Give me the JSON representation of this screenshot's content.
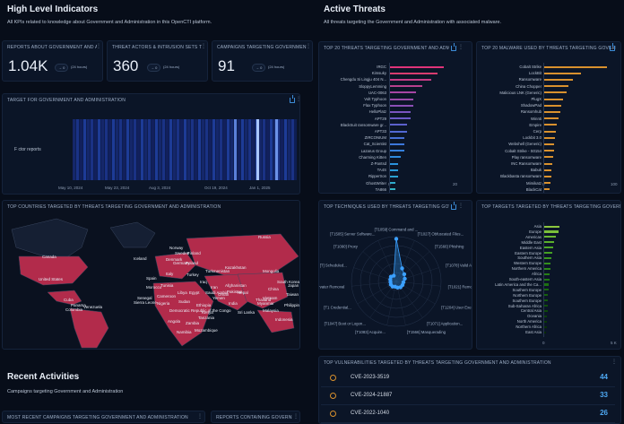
{
  "left_header": {
    "title": "High Level Indicators",
    "subtitle": "All KPIs related to knowledge about Government and Administration in this OpenCTI platform."
  },
  "right_header": {
    "title": "Active Threats",
    "subtitle": "All threats targeting the Government and Administration with associated malware."
  },
  "kpis": [
    {
      "title": "REPORTS ABOUT GOVERNMENT AND AD...",
      "value": "1.04K",
      "delta": "0",
      "period": "(24 hours)"
    },
    {
      "title": "THREAT ACTORS & INTRUSION SETS TA...",
      "value": "360",
      "delta": "0",
      "period": "(24 hours)"
    },
    {
      "title": "CAMPAIGNS TARGETING GOVERNMENT ...",
      "value": "91",
      "delta": "0",
      "period": "(24 hours)"
    }
  ],
  "timeline": {
    "title": "TARGET FOR GOVERNMENT AND ADMINISTRATION",
    "row_label": "F                  ctor reports",
    "dates": [
      "May 10, 2024",
      "May 23, 2024",
      "Aug 3, 2024",
      "Oct 19, 2024",
      "Jan 1, 2025"
    ]
  },
  "threats": {
    "title": "TOP 20 THREATS TARGETING GOVERNMENT AND ADMINISTRATI...",
    "ticks": [
      "0",
      "20"
    ],
    "items": [
      "IRGC",
      "Kimsuky",
      "Chengdu Si Lingju 404 N...",
      "SloppyLemming",
      "UAC-0063",
      "Volt Typhoon",
      "Flax Typhoon",
      "HelloPlatz",
      "APT29",
      "BlackSuit ransomware gr...",
      "APT33",
      "ZIRCONIUM",
      "Cat_Scientist",
      "Lazarus Group",
      "Charming Kitten",
      "Z-Pantsd",
      "TA4S",
      "Rippertron",
      "GhostWriter",
      "TA866"
    ]
  },
  "malware": {
    "title": "TOP 20 MALWARE USED BY THREATS TARGETING GOVERNMENT A...",
    "ticks": [
      "0",
      "100"
    ],
    "items": [
      "Cobalt Strike",
      "LockBit",
      "Ransomware",
      "China Chopper",
      "Malicious LNK (Generic)",
      "PlugX",
      "ShadowPad",
      "Ransomhub",
      "Winnti",
      "Empire",
      "Cerp",
      "Lockbit 3.0",
      "Webshell (Generic)",
      "Cobalt Strike - S0154",
      "Play ransomware",
      "INC Ransomware",
      "Babuk",
      "Blackbasta ransomware",
      "Mimikatz",
      "BlackCat"
    ]
  },
  "countries": {
    "title": "TOP COUNTRIES TARGETED BY THREATS TARGETING GOVERNMENT AND ADMINISTRATION",
    "labels": [
      "Iceland",
      "Canada",
      "United States",
      "Cuba",
      "Panama",
      "Colombia",
      "Venezuela",
      "Norway",
      "Sweden",
      "Finland",
      "Russia",
      "Denmark",
      "Germany",
      "Poland",
      "Italy",
      "Spain",
      "Turkey",
      "Turkmenistan",
      "Kazakhstan",
      "Mongolia",
      "Morocco",
      "Tunisia",
      "Iraq",
      "Iran",
      "Afghanistan",
      "Libya",
      "Egypt",
      "Pakistan",
      "Nepal",
      "China",
      "Senegal",
      "Nigeria",
      "Ethiopia",
      "India",
      "Myanmar",
      "Sierra Leone",
      "Sudan",
      "Philippines",
      "Democratic Republic of the Congo",
      "Sri Lanka",
      "Japan",
      "South Korea",
      "Indonesia",
      "Namibia",
      "Mozambique",
      "Zambia",
      "Angola",
      "Kenya",
      "Tanzania",
      "Yemen",
      "Oman",
      "Saudi Arabia",
      "Taiwan",
      "Vietnam",
      "Thailand",
      "Malaysia",
      "Cameroon"
    ]
  },
  "techniques": {
    "title": "TOP TECHNIQUES USED BY THREATS TARGETING GOVERNMENT A...",
    "labels": [
      "[T1059] Command and ...",
      "[T1027] Obfuscated Files...",
      "[T1566] Phishing",
      "[T1078] Valid A...",
      "[T1021] Remo...",
      "[T1204] User Exe...",
      "[T1071] Application...",
      "[T1566] Masquerading",
      "[T1083] Acquire...",
      "[T1047] Boot or Logon...",
      "[T1 Credential...",
      "rvater Removal",
      "[T] Scheduled...",
      "[T1090] Proxy",
      "[T1505] Server Software..."
    ],
    "values": [
      95,
      32,
      24,
      20,
      16,
      16,
      16,
      14,
      12,
      14,
      14,
      13,
      14,
      16,
      14
    ]
  },
  "regions": {
    "title": "TOP TARGETS TARGETED BY THREATS TARGETING GOVERNMENT AND ADMINISTRATION",
    "ticks": [
      "0",
      "5 K"
    ],
    "items": [
      "Asia",
      "Europe",
      "Americas",
      "Middle East",
      "Eastern Asia",
      "Eastern Europe",
      "Southern Asia",
      "Western Europe",
      "Northern America",
      "Africa",
      "South-eastern Asia",
      "Latin America and the Ca...",
      "Southern Europe",
      "Northern Europe",
      "Southern Europe",
      "Sub-Saharan Africa",
      "Central Asia",
      "Oceania",
      "North America",
      "Northern Africa",
      "East Asia"
    ]
  },
  "recent": {
    "title": "Recent Activities",
    "subtitle": "Campaigns targeting Government and Administration",
    "panel_left": "MOST RECENT CAMPAIGNS TARGETING GOVERNMENT AND ADMINISTRATION",
    "panel_right": "REPORTS CONTAINING GOVERNMENT A..."
  },
  "vulns": {
    "title": "TOP VULNERABILITIES TARGETED BY THREATS TARGETING GOVERNMENT AND ADMINISTRATION",
    "items": [
      {
        "name": "CVE-2023-3519",
        "count": "44"
      },
      {
        "name": "CVE-2024-21887",
        "count": "33"
      },
      {
        "name": "CVE-2022-1040",
        "count": "26"
      }
    ]
  },
  "chart_data": [
    {
      "type": "bar",
      "orientation": "horizontal",
      "title": "TOP 20 THREATS TARGETING GOVERNMENT AND ADMINISTRATI...",
      "categories": [
        "IRGC",
        "Kimsuky",
        "Chengdu Si Lingju 404 N...",
        "SloppyLemming",
        "UAC-0063",
        "Volt Typhoon",
        "Flax Typhoon",
        "HelloPlatz",
        "APT29",
        "BlackSuit ransomware gr...",
        "APT33",
        "ZIRCONIUM",
        "Cat_Scientist",
        "Lazarus Group",
        "Charming Kitten",
        "Z-Pantsd",
        "TA4S",
        "Rippertron",
        "GhostWriter",
        "TA866"
      ],
      "values": [
        18,
        16,
        14,
        11,
        9,
        8,
        8,
        7,
        7,
        6,
        6,
        5,
        5,
        5,
        4,
        3,
        3,
        3,
        2,
        2
      ],
      "xlim": [
        0,
        22
      ],
      "colors": [
        "#e0347a",
        "#d93c6f",
        "#c63b85",
        "#b8418d",
        "#a745a4",
        "#9c4aa9",
        "#8b4fb5",
        "#7a54c0",
        "#6b5ac6",
        "#5c61cc",
        "#5268d3",
        "#466fd6",
        "#3d78db",
        "#3580dd",
        "#2e8add",
        "#2a92dc",
        "#2a9ad7",
        "#2ba2d2",
        "#2eabcc",
        "#33b3c4"
      ]
    },
    {
      "type": "bar",
      "orientation": "horizontal",
      "title": "TOP 20 MALWARE USED BY THREATS TARGETING GOVERNMENT A...",
      "categories": [
        "Cobalt Strike",
        "LockBit",
        "Ransomware",
        "China Chopper",
        "Malicious LNK (Generic)",
        "PlugX",
        "ShadowPad",
        "Ransomhub",
        "Winnti",
        "Empire",
        "Cerp",
        "Lockbit 3.0",
        "Webshell (Generic)",
        "Cobalt Strike - S0154",
        "Play ransomware",
        "INC Ransomware",
        "Babuk",
        "Blackbasta ransomware",
        "Mimikatz",
        "BlackCat"
      ],
      "values": [
        105,
        62,
        48,
        42,
        38,
        32,
        30,
        28,
        25,
        22,
        20,
        19,
        18,
        17,
        16,
        15,
        14,
        13,
        12,
        11
      ],
      "xlim": [
        0,
        115
      ],
      "color": "#d9912e"
    },
    {
      "type": "bar",
      "orientation": "horizontal",
      "title": "TOP TARGETS TARGETED BY THREATS TARGETING GOVERNMENT AND ADMINISTRATION",
      "categories": [
        "Asia",
        "Europe",
        "Americas",
        "Middle East",
        "Eastern Asia",
        "Eastern Europe",
        "Southern Asia",
        "Western Europe",
        "Northern America",
        "Africa",
        "South-eastern Asia",
        "Latin America and the Ca...",
        "Southern Europe",
        "Northern Europe",
        "Southern Europe",
        "Sub-Saharan Africa",
        "Central Asia",
        "Oceania",
        "North America",
        "Northern Africa",
        "East Asia"
      ],
      "values": [
        1200,
        1100,
        900,
        800,
        700,
        650,
        600,
        560,
        520,
        480,
        440,
        400,
        380,
        360,
        340,
        320,
        300,
        280,
        260,
        240,
        220
      ],
      "xlim": [
        0,
        5200
      ],
      "colors": [
        "#8cc63f",
        "#7bbf3a",
        "#6ab832",
        "#5bb02c",
        "#4ea828",
        "#44a023",
        "#3a981f",
        "#33901c",
        "#2c8819",
        "#268016",
        "#207813",
        "#1c7011",
        "#18680f",
        "#15600d",
        "#12580c",
        "#10500a",
        "#0e4809",
        "#0c4008",
        "#0b3807",
        "#0a3106",
        "#092a05"
      ]
    },
    {
      "type": "heatmap",
      "title": "TARGET FOR GOVERNMENT AND ADMINISTRATION",
      "x": [
        "May 10, 2024",
        "May 23, 2024",
        "Aug 3, 2024",
        "Oct 19, 2024",
        "Jan 1, 2025"
      ]
    },
    {
      "type": "radar",
      "title": "TOP TECHNIQUES USED BY THREATS TARGETING GOVERNMENT A...",
      "categories": [
        "[T1059] Command and ...",
        "[T1027] Obfuscated Files...",
        "[T1566] Phishing",
        "[T1078] Valid A...",
        "[T1021] Remo...",
        "[T1204] User Exe...",
        "[T1071] Application...",
        "[T1566] Masquerading",
        "[T1083] Acquire...",
        "[T1047] Boot or Logon...",
        "[T1 Credential...",
        "rvater Removal",
        "[T] Scheduled...",
        "[T1090] Proxy",
        "[T1505] Server Software..."
      ],
      "values": [
        95,
        32,
        24,
        20,
        16,
        16,
        16,
        14,
        12,
        14,
        14,
        13,
        14,
        16,
        14
      ]
    }
  ]
}
